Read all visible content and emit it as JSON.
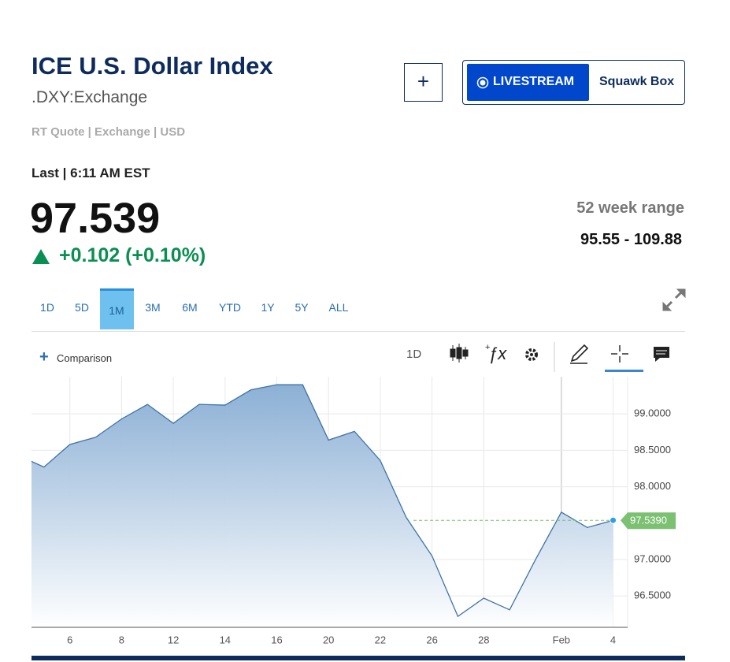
{
  "header": {
    "title": "ICE U.S. Dollar Index",
    "symbol": ".DXY:Exchange",
    "quote_info": "RT Quote | Exchange | USD"
  },
  "buttons": {
    "add": "+",
    "livestream": "LIVESTREAM",
    "squawk": "Squawk Box"
  },
  "quote": {
    "last_label": "Last | 6:11 AM EST",
    "price": "97.539",
    "change": "+0.102 (+0.10%)"
  },
  "range52": {
    "label": "52 week range",
    "value": "95.55 - 109.88"
  },
  "tabs": {
    "options": [
      "1D",
      "5D",
      "1M",
      "3M",
      "6M",
      "YTD",
      "1Y",
      "5Y",
      "ALL"
    ],
    "active_index": 2
  },
  "toolbar": {
    "comparison": "Comparison",
    "interval": "1D"
  },
  "chart_data": {
    "type": "line",
    "categories": [
      null,
      null,
      "6",
      null,
      "8",
      null,
      "12",
      null,
      "14",
      null,
      "16",
      null,
      "20",
      null,
      "22",
      null,
      "26",
      null,
      "28",
      null,
      null,
      "Feb",
      null,
      "4"
    ],
    "values": [
      98.43,
      98.27,
      98.58,
      98.68,
      98.93,
      99.13,
      98.87,
      99.13,
      99.12,
      99.33,
      99.4,
      99.4,
      98.64,
      98.76,
      98.36,
      97.58,
      97.05,
      96.22,
      96.47,
      96.31,
      97.0,
      97.65,
      97.44,
      97.539
    ],
    "value_labels": [
      null,
      null,
      null,
      null,
      null,
      null,
      null,
      null,
      null,
      null,
      null,
      null,
      null,
      null,
      null,
      null,
      null,
      null,
      null,
      null,
      null,
      null,
      null,
      "97.5390"
    ],
    "color": "#3f73a6",
    "fill_color": "#86acd3",
    "last_color": "#7cc072",
    "ylim": [
      96.07,
      99.51
    ],
    "yticks": [
      {
        "value": 96.5,
        "label": "96.5000"
      },
      {
        "value": 97,
        "label": "97.0000"
      },
      {
        "value": 98,
        "label": "98.0000"
      },
      {
        "value": 98.5,
        "label": "98.5000"
      },
      {
        "value": 99,
        "label": "99.0000"
      }
    ],
    "grid": true
  }
}
